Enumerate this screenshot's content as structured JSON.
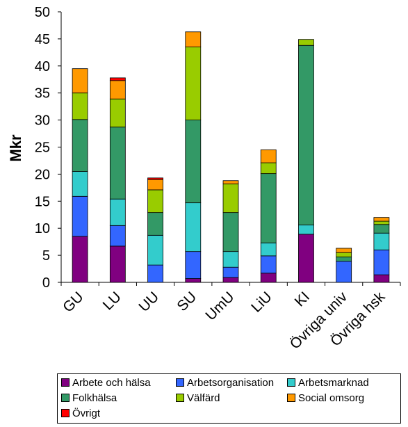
{
  "chart_data": {
    "type": "bar",
    "stacked": true,
    "ylabel": "Mkr",
    "ylim": [
      0,
      50
    ],
    "yticks": [
      0,
      5,
      10,
      15,
      20,
      25,
      30,
      35,
      40,
      45,
      50
    ],
    "grid": false,
    "legend_position": "bottom",
    "categories": [
      "GU",
      "LU",
      "UU",
      "SU",
      "UmU",
      "LiU",
      "KI",
      "Övriga univ",
      "Övriga hsk"
    ],
    "series": [
      {
        "name": "Arbete och hälsa",
        "color": "#800080",
        "values": [
          8.5,
          6.7,
          0,
          0.7,
          0.9,
          1.7,
          8.9,
          0,
          1.4
        ]
      },
      {
        "name": "Arbetsorganisation",
        "color": "#3366FF",
        "values": [
          7.4,
          3.8,
          3.2,
          5.0,
          1.9,
          3.2,
          0,
          3.9,
          4.6
        ]
      },
      {
        "name": "Arbetsmarknad",
        "color": "#33CCCC",
        "values": [
          4.6,
          4.9,
          5.5,
          9.0,
          2.9,
          2.4,
          1.7,
          0,
          3.1
        ]
      },
      {
        "name": "Folkhälsa",
        "color": "#339966",
        "values": [
          9.6,
          13.3,
          4.2,
          15.3,
          7.2,
          12.8,
          33.2,
          0.8,
          1.6
        ]
      },
      {
        "name": "Välfärd",
        "color": "#99CC00",
        "values": [
          4.9,
          5.2,
          4.2,
          13.5,
          5.3,
          2.0,
          1.1,
          0.8,
          0.6
        ]
      },
      {
        "name": "Social omsorg",
        "color": "#FF9900",
        "values": [
          4.5,
          3.4,
          1.9,
          2.8,
          0.6,
          2.4,
          0,
          0.8,
          0.7
        ]
      },
      {
        "name": "Övrigt",
        "color": "#FF0000",
        "values": [
          0,
          0.5,
          0.3,
          0,
          0,
          0,
          0,
          0,
          0
        ]
      }
    ]
  }
}
